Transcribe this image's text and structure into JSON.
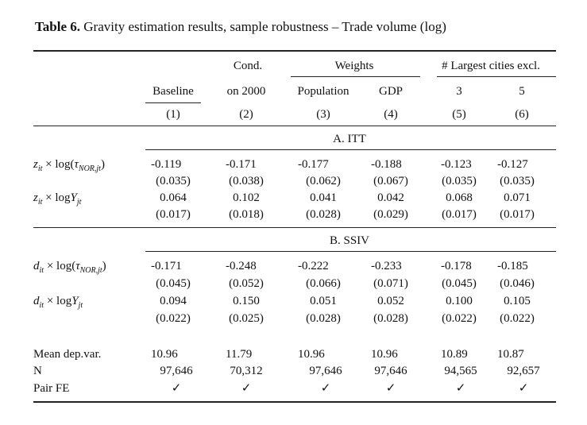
{
  "caption": {
    "label": "Table 6.",
    "text": "Gravity estimation results, sample robustness – Trade volume (log)"
  },
  "header": {
    "cond_top": "Cond.",
    "weights": "Weights",
    "largest": "# Largest cities excl.",
    "cols": [
      "Baseline",
      "on 2000",
      "Population",
      "GDP",
      "3",
      "5"
    ],
    "nums": [
      "(1)",
      "(2)",
      "(3)",
      "(4)",
      "(5)",
      "(6)"
    ]
  },
  "panels": [
    {
      "title": "A. ITT",
      "rows": [
        {
          "label_var": "z",
          "label_sub": "it",
          "label_tail": "NOR,jt",
          "coef": [
            "-0.119",
            "-0.171",
            "-0.177",
            "-0.188",
            "-0.123",
            "-0.127"
          ],
          "se": [
            "(0.035)",
            "(0.038)",
            "(0.062)",
            "(0.067)",
            "(0.035)",
            "(0.035)"
          ]
        },
        {
          "label_var": "z",
          "label_sub": "it",
          "label_tail": "jt",
          "coef": [
            "0.064",
            "0.102",
            "0.041",
            "0.042",
            "0.068",
            "0.071"
          ],
          "se": [
            "(0.017)",
            "(0.018)",
            "(0.028)",
            "(0.029)",
            "(0.017)",
            "(0.017)"
          ]
        }
      ]
    },
    {
      "title": "B. SSIV",
      "rows": [
        {
          "label_var": "d",
          "label_sub": "it",
          "label_tail": "NOR,jt",
          "coef": [
            "-0.171",
            "-0.248",
            "-0.222",
            "-0.233",
            "-0.178",
            "-0.185"
          ],
          "se": [
            "(0.045)",
            "(0.052)",
            "(0.066)",
            "(0.071)",
            "(0.045)",
            "(0.046)"
          ]
        },
        {
          "label_var": "d",
          "label_sub": "it",
          "label_tail": "jt",
          "coef": [
            "0.094",
            "0.150",
            "0.051",
            "0.052",
            "0.100",
            "0.105"
          ],
          "se": [
            "(0.022)",
            "(0.025)",
            "(0.028)",
            "(0.028)",
            "(0.022)",
            "(0.022)"
          ]
        }
      ]
    }
  ],
  "footer": {
    "mean_label": "Mean dep.var.",
    "mean": [
      "10.96",
      "11.79",
      "10.96",
      "10.96",
      "10.89",
      "10.87"
    ],
    "n_label": "N",
    "n": [
      "97,646",
      "70,312",
      "97,646",
      "97,646",
      "94,565",
      "92,657"
    ],
    "fe_label": "Pair FE",
    "fe": [
      "✓",
      "✓",
      "✓",
      "✓",
      "✓",
      "✓"
    ]
  }
}
